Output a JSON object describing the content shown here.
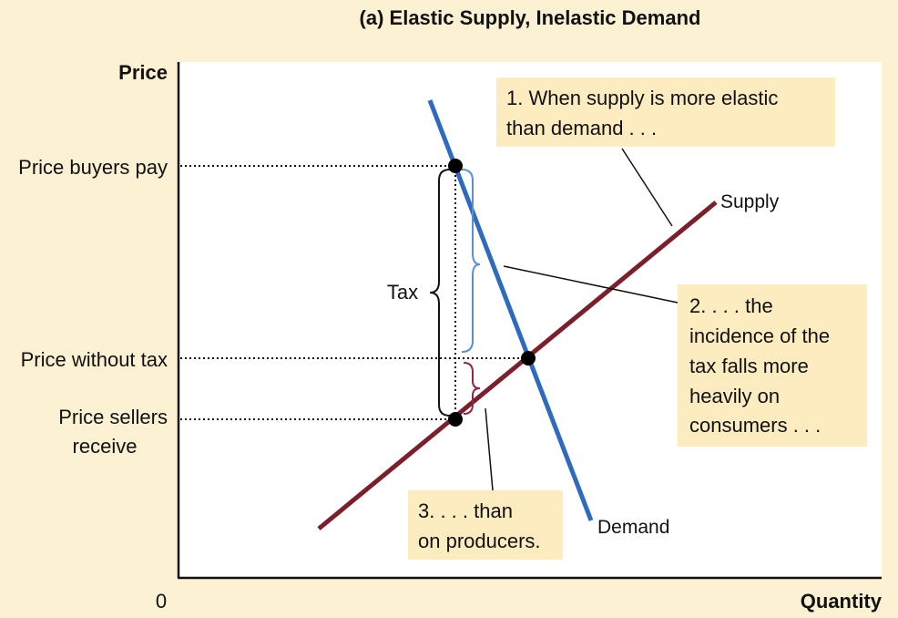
{
  "title": "(a) Elastic Supply, Inelastic Demand",
  "axes": {
    "y_label": "Price",
    "x_label": "Quantity",
    "origin": "0"
  },
  "price_labels": {
    "buyers_pay": "Price buyers pay",
    "without_tax": "Price without tax",
    "sellers_receive_line1": "Price sellers",
    "sellers_receive_line2": "receive"
  },
  "curves": {
    "supply": "Supply",
    "demand": "Demand"
  },
  "tax_label": "Tax",
  "annotations": {
    "note1_line1": "1. When supply is more elastic",
    "note1_line2": "than demand . . .",
    "note2_line1": "2. . . . the",
    "note2_line2": "incidence of the",
    "note2_line3": "tax falls more",
    "note2_line4": "heavily on",
    "note2_line5": "consumers . . .",
    "note3_line1": "3. . . . than",
    "note3_line2": "on producers."
  },
  "colors": {
    "supply": "#7a1f2b",
    "demand": "#2e6bbf",
    "buyer_brace": "#5b8fd0",
    "seller_brace": "#8a2a45",
    "note_box": "#fdecc0",
    "plot_bg": "#ffffff",
    "page_bg": "#fdf1d4"
  }
}
